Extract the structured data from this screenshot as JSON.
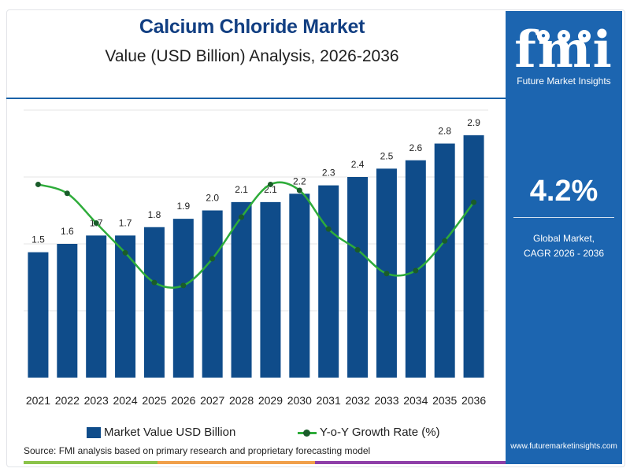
{
  "header": {
    "title": "Calcium Chloride Market",
    "subtitle": "Value (USD Billion) Analysis, 2026-2036"
  },
  "side_panel": {
    "logo_text": "fmi",
    "logo_caption": "Future Market Insights",
    "cagr_value": "4.2%",
    "cagr_label_line1": "Global Market,",
    "cagr_label_line2": "CAGR 2026 - 2036",
    "website": "www.futuremarketinsights.com"
  },
  "legend": {
    "bar_label": "Market Value USD Billion",
    "line_label": "Y-o-Y Growth Rate (%)"
  },
  "source_note": "Source: FMI analysis based on primary research and proprietary forecasting model",
  "colors": {
    "bar": "#0f4c8a",
    "line": "#2eac3a",
    "marker": "#1a5c2a",
    "title": "#123f82",
    "panel": "#1c65b0"
  },
  "chart_data": {
    "type": "bar",
    "categories": [
      "2021",
      "2022",
      "2023",
      "2024",
      "2025",
      "2026",
      "2027",
      "2028",
      "2029",
      "2030",
      "2031",
      "2032",
      "2033",
      "2034",
      "2035",
      "2036"
    ],
    "series": [
      {
        "name": "Market Value USD Billion",
        "type": "bar",
        "values": [
          1.5,
          1.6,
          1.7,
          1.7,
          1.8,
          1.9,
          2.0,
          2.1,
          2.1,
          2.2,
          2.3,
          2.4,
          2.5,
          2.6,
          2.8,
          2.9
        ],
        "data_labels": [
          "1.5",
          "1.6",
          "1.7",
          "1.7",
          "1.8",
          "1.9",
          "2.0",
          "2.1",
          "2.1",
          "2.2",
          "2.3",
          "2.4",
          "2.5",
          "2.6",
          "2.8",
          "2.9"
        ]
      },
      {
        "name": "Y-o-Y Growth Rate (%)",
        "type": "line",
        "values": [
          6.5,
          6.2,
          5.2,
          4.2,
          3.2,
          3.1,
          4.0,
          5.4,
          6.5,
          6.3,
          5.0,
          4.3,
          3.5,
          3.6,
          4.6,
          5.9
        ]
      }
    ],
    "ylim": [
      0,
      3.2
    ],
    "y2lim": [
      0,
      9
    ],
    "grid": true,
    "legend_position": "bottom"
  }
}
